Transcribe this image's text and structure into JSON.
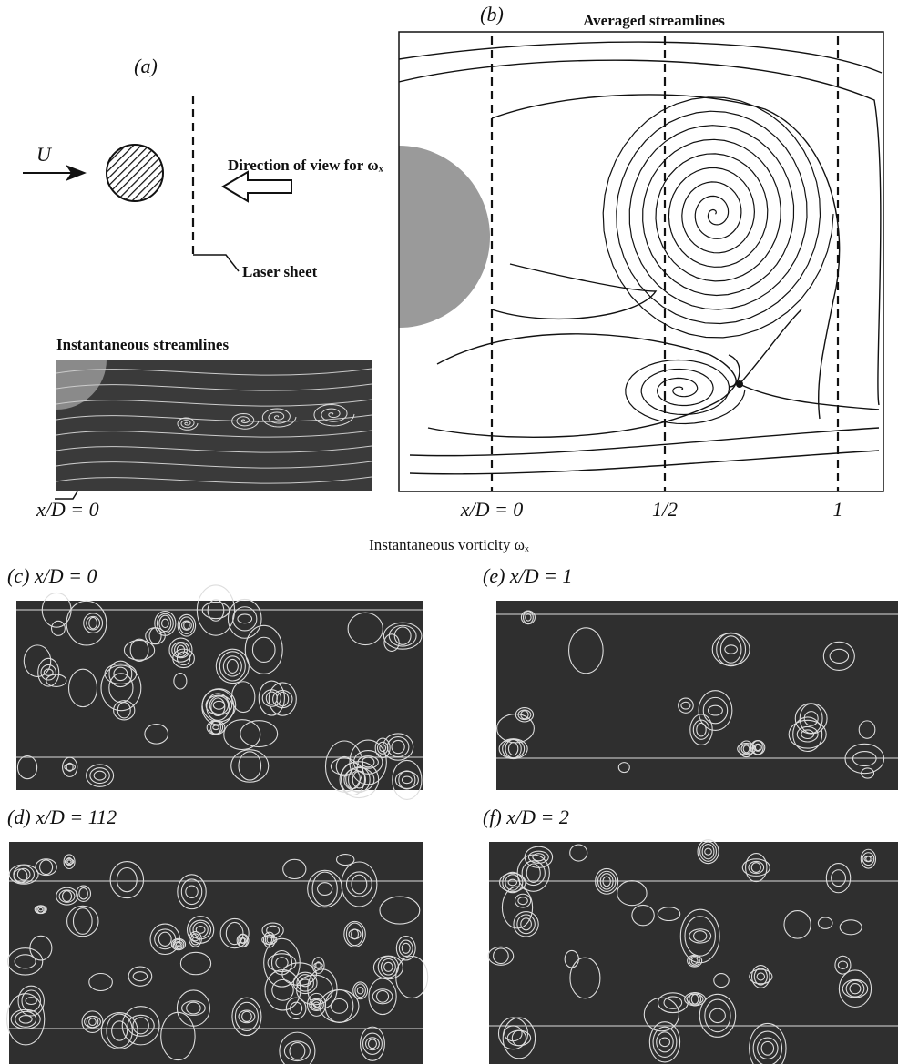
{
  "panel_a": {
    "label": "(a)",
    "flow": "U",
    "view_direction": "Direction of view for ωₓ",
    "laser_sheet": "Laser sheet",
    "streamlines_title": "Instantaneous streamlines",
    "position": "x/D = 0"
  },
  "panel_b": {
    "label": "(b)",
    "title": "Averaged streamlines",
    "ticks": [
      "x/D = 0",
      "1/2",
      "1"
    ]
  },
  "vorticity_title": "Instantaneous vorticity ωₓ",
  "panels": [
    {
      "label": "(c) x/D = 0"
    },
    {
      "label": "(e) x/D = 1"
    },
    {
      "label": "(d) x/D = 112"
    },
    {
      "label": "(f) x/D = 2"
    }
  ]
}
